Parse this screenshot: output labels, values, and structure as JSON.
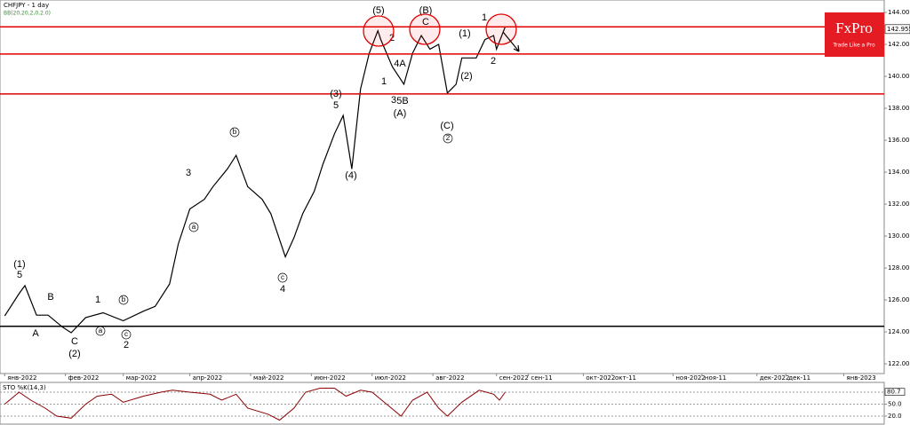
{
  "chart_data": [
    {
      "type": "line",
      "title": "CHFJPY - 1 day",
      "subtitle": "BB(20,20,2,0,2.0)",
      "x": [
        1,
        6,
        8,
        12,
        16,
        21,
        24,
        29,
        35,
        42,
        49,
        53,
        58,
        61,
        65,
        70,
        73,
        78,
        81,
        85,
        90,
        93,
        98,
        101,
        104,
        108,
        111,
        115,
        118,
        121,
        124,
        127,
        130,
        131,
        135,
        139,
        142,
        145,
        148,
        151,
        154,
        157,
        159,
        164,
        167,
        170,
        171,
        174
      ],
      "values": [
        125.0,
        126.4,
        126.9,
        125.05,
        125.05,
        124.3,
        123.95,
        124.9,
        125.2,
        124.7,
        125.3,
        125.6,
        127.0,
        129.5,
        131.7,
        132.3,
        133.1,
        134.2,
        135.05,
        133.1,
        132.3,
        131.4,
        128.7,
        129.9,
        131.4,
        132.8,
        134.5,
        136.4,
        137.55,
        134.2,
        139.2,
        141.45,
        142.85,
        142.3,
        140.6,
        139.5,
        141.45,
        142.55,
        141.7,
        142.0,
        138.95,
        139.5,
        141.15,
        141.15,
        142.3,
        142.55,
        141.7,
        143.1
      ],
      "color": "#000000",
      "xlim": [
        0,
        305
      ],
      "xticks": [
        {
          "value": 1,
          "label": "янв-2022"
        },
        {
          "value": 22,
          "label": "фев-2022"
        },
        {
          "value": 42,
          "label": "мар-2022"
        },
        {
          "value": 65,
          "label": "апр-2022"
        },
        {
          "value": 86,
          "label": "май-2022"
        },
        {
          "value": 107,
          "label": "июн-2022"
        },
        {
          "value": 128,
          "label": "июл-2022"
        },
        {
          "value": 149,
          "label": "авг-2022"
        },
        {
          "value": 171,
          "label": "сен-2022"
        },
        {
          "value": 182,
          "label": "сен-11"
        },
        {
          "value": 201,
          "label": "окт-2022"
        },
        {
          "value": 211,
          "label": "окт-11"
        },
        {
          "value": 232,
          "label": "ноя-2022"
        },
        {
          "value": 242,
          "label": "ноя-11"
        },
        {
          "value": 261,
          "label": "дек-2022"
        },
        {
          "value": 271,
          "label": "дек-11"
        },
        {
          "value": 291,
          "label": "янв-2023"
        }
      ],
      "ylim": [
        121.45,
        144.556
      ],
      "yticks": [
        {
          "value": 144,
          "label": "144.000"
        },
        {
          "value": 142,
          "label": "142.000"
        },
        {
          "value": 140,
          "label": "140.000"
        },
        {
          "value": 138,
          "label": "138.000"
        },
        {
          "value": 136,
          "label": "136.000"
        },
        {
          "value": 134,
          "label": "134.000"
        },
        {
          "value": 132,
          "label": "132.000"
        },
        {
          "value": 130,
          "label": "130.000"
        },
        {
          "value": 128,
          "label": "128.000"
        },
        {
          "value": 126,
          "label": "126.000"
        },
        {
          "value": 124,
          "label": "124.000"
        },
        {
          "value": 122,
          "label": "122.000"
        }
      ],
      "current_price": {
        "value": 142.955,
        "label": "142.955"
      },
      "levels": [
        {
          "value": 143.1,
          "color": "#e00000"
        },
        {
          "value": 141.4,
          "color": "#e00000"
        },
        {
          "value": 138.9,
          "color": "#e00000"
        },
        {
          "value": 124.35,
          "color": "#000000"
        }
      ],
      "annotations": [
        "(1)",
        "5",
        "A",
        "B",
        "C",
        "(2)",
        "1",
        "b",
        "a",
        "c",
        "2",
        "3",
        "a",
        "b",
        "c",
        "4",
        "(3)",
        "5",
        "(4)",
        "(5)",
        "2",
        "4A",
        "1",
        "3",
        "5B",
        "(A)",
        "(B)",
        "C",
        "(1)",
        "1",
        "(2)",
        "2",
        "(C)",
        "2"
      ]
    },
    {
      "type": "line",
      "title": "STO %K(14,3)",
      "x": [
        1,
        6,
        10,
        15,
        19,
        24,
        29,
        33,
        38,
        42,
        49,
        55,
        59,
        65,
        72,
        76,
        81,
        85,
        92,
        96,
        101,
        105,
        110,
        115,
        119,
        124,
        128,
        133,
        138,
        142,
        147,
        151,
        154,
        159,
        165,
        170,
        172,
        174
      ],
      "values": [
        50,
        80,
        60,
        40,
        20,
        15,
        50,
        70,
        75,
        55,
        70,
        80,
        85,
        80,
        75,
        60,
        75,
        40,
        25,
        10,
        40,
        80,
        90,
        90,
        70,
        85,
        80,
        50,
        20,
        60,
        80,
        40,
        20,
        55,
        85,
        75,
        60,
        80
      ],
      "color": "#8b0000",
      "ylim": [
        0,
        100
      ],
      "yticks": [
        {
          "value": 80,
          "label": "80.0"
        },
        {
          "value": 50,
          "label": "50.0"
        },
        {
          "value": 20,
          "label": "20.0"
        }
      ],
      "current": {
        "value": 80.7,
        "label": "80.7"
      }
    }
  ],
  "logo": {
    "name": "FxPro",
    "tagline": "Trade Like a Pro"
  }
}
